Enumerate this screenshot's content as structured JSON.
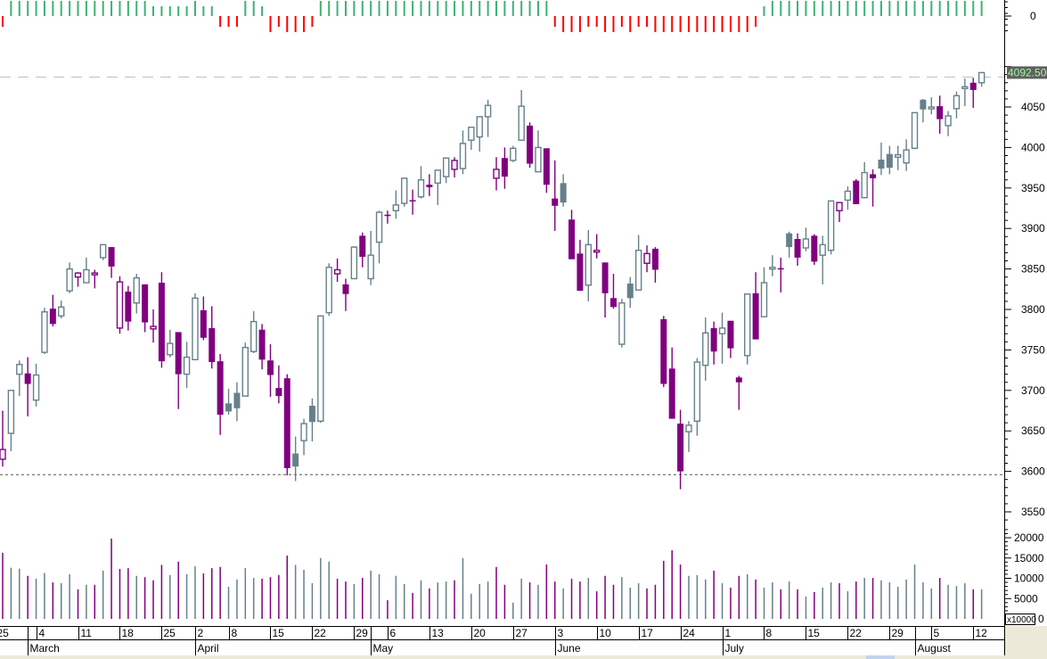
{
  "chart_data": {
    "type": "candlestick",
    "title": "",
    "colors": {
      "up": "#66808a",
      "down": "#800080",
      "indicator_up": "#3cb371",
      "indicator_down": "#ff0000",
      "last_price_bg": "#5f5f5f",
      "last_price_text": "#9dff9d"
    },
    "price_axis": {
      "range": [
        3540,
        4100
      ],
      "ticks": [
        "4050",
        "4000",
        "3950",
        "3900",
        "3850",
        "3800",
        "3750",
        "3700",
        "3650",
        "3600",
        "3550"
      ]
    },
    "last_price": {
      "value": 4092.5,
      "label": "4092.500"
    },
    "support_line": {
      "value": 3596
    },
    "indicator_axis": {
      "label": "0"
    },
    "volume_axis": {
      "ticks": [
        "20000",
        "15000",
        "10000",
        "5000",
        "0"
      ],
      "multiplier": "x10000",
      "max": 20000
    },
    "candles_ohlc": [
      [
        3615,
        3675,
        3606,
        3627
      ],
      [
        3647,
        3700,
        3625,
        3700
      ],
      [
        3720,
        3737,
        3693,
        3732
      ],
      [
        3721,
        3741,
        3668,
        3708
      ],
      [
        3688,
        3733,
        3680,
        3719
      ],
      [
        3747,
        3802,
        3745,
        3797
      ],
      [
        3801,
        3818,
        3779,
        3782
      ],
      [
        3792,
        3811,
        3789,
        3803
      ],
      [
        3823,
        3858,
        3820,
        3850
      ],
      [
        3840,
        3846,
        3828,
        3845
      ],
      [
        3833,
        3864,
        3833,
        3849
      ],
      [
        3843,
        3849,
        3826,
        3845
      ],
      [
        3864,
        3880,
        3861,
        3880
      ],
      [
        3877,
        3877,
        3839,
        3853
      ],
      [
        3777,
        3841,
        3770,
        3834
      ],
      [
        3822,
        3829,
        3774,
        3785
      ],
      [
        3808,
        3844,
        3795,
        3839
      ],
      [
        3831,
        3831,
        3772,
        3784
      ],
      [
        3776,
        3800,
        3759,
        3779
      ],
      [
        3833,
        3846,
        3728,
        3736
      ],
      [
        3744,
        3775,
        3741,
        3758
      ],
      [
        3772,
        3772,
        3677,
        3720
      ],
      [
        3720,
        3760,
        3703,
        3741
      ],
      [
        3738,
        3820,
        3738,
        3814
      ],
      [
        3799,
        3816,
        3762,
        3765
      ],
      [
        3777,
        3804,
        3727,
        3735
      ],
      [
        3736,
        3745,
        3645,
        3670
      ],
      [
        3684,
        3702,
        3670,
        3674
      ],
      [
        3697,
        3710,
        3662,
        3678
      ],
      [
        3693,
        3759,
        3693,
        3753
      ],
      [
        3748,
        3798,
        3746,
        3785
      ],
      [
        3775,
        3782,
        3726,
        3738
      ],
      [
        3737,
        3757,
        3692,
        3719
      ],
      [
        3703,
        3731,
        3684,
        3693
      ],
      [
        3715,
        3720,
        3595,
        3604
      ],
      [
        3622,
        3643,
        3588,
        3606
      ],
      [
        3638,
        3665,
        3620,
        3659
      ],
      [
        3681,
        3690,
        3637,
        3661
      ],
      [
        3662,
        3792,
        3660,
        3792
      ],
      [
        3796,
        3857,
        3792,
        3852
      ],
      [
        3844,
        3863,
        3834,
        3849
      ],
      [
        3831,
        3838,
        3798,
        3819
      ],
      [
        3838,
        3878,
        3838,
        3877
      ],
      [
        3891,
        3895,
        3852,
        3865
      ],
      [
        3838,
        3897,
        3830,
        3867
      ],
      [
        3883,
        3922,
        3857,
        3920
      ],
      [
        3917,
        3922,
        3906,
        3916
      ],
      [
        3922,
        3947,
        3912,
        3929
      ],
      [
        3931,
        3963,
        3927,
        3962
      ],
      [
        3935,
        3948,
        3917,
        3934
      ],
      [
        3939,
        3977,
        3937,
        3960
      ],
      [
        3954,
        3967,
        3940,
        3951
      ],
      [
        3956,
        3972,
        3929,
        3972
      ],
      [
        3964,
        3987,
        3956,
        3987
      ],
      [
        3973,
        3988,
        3963,
        3984
      ],
      [
        3974,
        4021,
        3967,
        4005
      ],
      [
        4009,
        4025,
        3997,
        4025
      ],
      [
        4013,
        4038,
        3995,
        4038
      ],
      [
        4038,
        4059,
        4013,
        4052
      ],
      [
        3962,
        3988,
        3947,
        3973
      ],
      [
        3987,
        4000,
        3949,
        3964
      ],
      [
        3984,
        4002,
        3982,
        3999
      ],
      [
        4009,
        4071,
        4009,
        4051
      ],
      [
        4027,
        4031,
        3975,
        3980
      ],
      [
        3970,
        4021,
        3970,
        4000
      ],
      [
        3999,
        3999,
        3944,
        3954
      ],
      [
        3937,
        3984,
        3897,
        3928
      ],
      [
        3956,
        3967,
        3927,
        3932
      ],
      [
        3911,
        3923,
        3862,
        3862
      ],
      [
        3869,
        3886,
        3823,
        3823
      ],
      [
        3830,
        3898,
        3810,
        3880
      ],
      [
        3873,
        3893,
        3863,
        3873
      ],
      [
        3858,
        3858,
        3790,
        3820
      ],
      [
        3814,
        3844,
        3801,
        3803
      ],
      [
        3757,
        3813,
        3753,
        3808
      ],
      [
        3832,
        3840,
        3802,
        3814
      ],
      [
        3824,
        3892,
        3824,
        3873
      ],
      [
        3857,
        3879,
        3846,
        3869
      ],
      [
        3875,
        3877,
        3833,
        3849
      ],
      [
        3788,
        3792,
        3704,
        3708
      ],
      [
        3727,
        3753,
        3665,
        3665
      ],
      [
        3659,
        3676,
        3578,
        3600
      ],
      [
        3649,
        3662,
        3624,
        3657
      ],
      [
        3662,
        3740,
        3644,
        3735
      ],
      [
        3731,
        3790,
        3712,
        3771
      ],
      [
        3777,
        3785,
        3732,
        3748
      ],
      [
        3770,
        3796,
        3733,
        3777
      ],
      [
        3786,
        3786,
        3740,
        3752
      ],
      [
        3716,
        3718,
        3676,
        3710
      ],
      [
        3743,
        3819,
        3732,
        3819
      ],
      [
        3820,
        3846,
        3763,
        3763
      ],
      [
        3791,
        3852,
        3791,
        3833
      ],
      [
        3850,
        3867,
        3841,
        3852
      ],
      [
        3851,
        3864,
        3821,
        3850
      ],
      [
        3894,
        3896,
        3864,
        3877
      ],
      [
        3887,
        3894,
        3854,
        3864
      ],
      [
        3876,
        3901,
        3872,
        3887
      ],
      [
        3891,
        3893,
        3855,
        3859
      ],
      [
        3867,
        3891,
        3831,
        3880
      ],
      [
        3873,
        3934,
        3868,
        3934
      ],
      [
        3922,
        3932,
        3908,
        3932
      ],
      [
        3935,
        3952,
        3923,
        3946
      ],
      [
        3959,
        3961,
        3930,
        3930
      ],
      [
        3938,
        3982,
        3938,
        3969
      ],
      [
        3967,
        3973,
        3927,
        3962
      ],
      [
        3985,
        4006,
        3966,
        3974
      ],
      [
        3992,
        4002,
        3967,
        3975
      ],
      [
        3988,
        4002,
        3972,
        3991
      ],
      [
        3981,
        4010,
        3971,
        3997
      ],
      [
        3999,
        4043,
        3998,
        4043
      ],
      [
        4059,
        4060,
        4031,
        4047
      ],
      [
        4050,
        4062,
        4041,
        4050
      ],
      [
        4051,
        4064,
        4017,
        4035
      ],
      [
        4027,
        4045,
        4014,
        4039
      ],
      [
        4048,
        4069,
        4036,
        4064
      ],
      [
        4073,
        4085,
        4051,
        4075
      ],
      [
        4080,
        4086,
        4049,
        4071
      ],
      [
        4080,
        4092.5,
        4075,
        4092.5
      ]
    ],
    "volume": [
      16300,
      12600,
      12400,
      10600,
      9900,
      11300,
      9000,
      8800,
      11000,
      7300,
      8400,
      8400,
      11900,
      19800,
      12300,
      12500,
      10600,
      10300,
      9500,
      13300,
      10800,
      14100,
      11000,
      13000,
      11200,
      12500,
      12800,
      7900,
      9700,
      12500,
      10100,
      9900,
      10300,
      10800,
      15600,
      13300,
      12100,
      8800,
      15000,
      14100,
      9900,
      9200,
      8600,
      10100,
      11900,
      11000,
      4600,
      10600,
      8600,
      6400,
      9500,
      7500,
      9000,
      9200,
      9500,
      15000,
      6200,
      8600,
      9200,
      12800,
      8400,
      4000,
      9900,
      9000,
      8400,
      13400,
      9200,
      7500,
      9900,
      9200,
      10100,
      6800,
      10600,
      8400,
      10300,
      7700,
      8800,
      7500,
      8400,
      14300,
      16900,
      13400,
      10600,
      10800,
      9700,
      11900,
      8800,
      7700,
      10600,
      11000,
      9700,
      7700,
      9000,
      7300,
      9200,
      7300,
      5500,
      6600,
      7700,
      9000,
      8800,
      6800,
      9200,
      10100,
      10100,
      9500,
      9000,
      7900,
      9700,
      13400,
      9000,
      7500,
      10100,
      8400,
      8100,
      8800,
      7300,
      7300
    ],
    "indicator": [
      -2,
      3,
      3,
      3,
      3,
      3,
      3,
      3,
      3,
      3,
      3,
      3,
      3,
      3,
      3,
      3,
      3,
      3,
      2,
      2,
      2,
      2,
      2,
      3,
      2,
      2,
      -2,
      -2,
      -2,
      3,
      3,
      2,
      -3,
      -2,
      -3,
      -3,
      -3,
      -2,
      3,
      3,
      3,
      3,
      3,
      3,
      3,
      3,
      3,
      3,
      3,
      3,
      3,
      3,
      3,
      3,
      3,
      3,
      3,
      3,
      3,
      3,
      3,
      3,
      3,
      3,
      3,
      3,
      -2,
      -3,
      -3,
      -3,
      -2,
      -2,
      -3,
      -3,
      -2,
      -3,
      -2,
      -2,
      -3,
      -3,
      -3,
      -3,
      -3,
      -3,
      -3,
      -3,
      -3,
      -3,
      -3,
      -3,
      -2,
      2,
      3,
      3,
      3,
      3,
      3,
      3,
      3,
      3,
      3,
      3,
      3,
      3,
      3,
      3,
      3,
      3,
      3,
      3,
      3,
      3,
      3,
      3,
      3,
      3,
      3,
      3
    ],
    "x_axis": {
      "days": [
        {
          "label": "25",
          "candle": 0
        },
        {
          "label": "4",
          "candle": 5
        },
        {
          "label": "11",
          "candle": 10
        },
        {
          "label": "18",
          "candle": 15
        },
        {
          "label": "25",
          "candle": 20
        },
        {
          "label": "2",
          "candle": 24
        },
        {
          "label": "8",
          "candle": 28
        },
        {
          "label": "15",
          "candle": 33
        },
        {
          "label": "22",
          "candle": 38
        },
        {
          "label": "29",
          "candle": 43
        },
        {
          "label": "6",
          "candle": 47
        },
        {
          "label": "13",
          "candle": 52
        },
        {
          "label": "20",
          "candle": 57
        },
        {
          "label": "27",
          "candle": 62
        },
        {
          "label": "3",
          "candle": 67
        },
        {
          "label": "10",
          "candle": 72
        },
        {
          "label": "17",
          "candle": 77
        },
        {
          "label": "24",
          "candle": 82
        },
        {
          "label": "1",
          "candle": 87
        },
        {
          "label": "8",
          "candle": 92
        },
        {
          "label": "15",
          "candle": 97
        },
        {
          "label": "22",
          "candle": 102
        },
        {
          "label": "29",
          "candle": 107
        },
        {
          "label": "5",
          "candle": 112
        },
        {
          "label": "12",
          "candle": 117
        }
      ],
      "months": [
        {
          "label": "March",
          "candle": 4
        },
        {
          "label": "April",
          "candle": 24
        },
        {
          "label": "May",
          "candle": 45
        },
        {
          "label": "June",
          "candle": 67
        },
        {
          "label": "July",
          "candle": 87
        },
        {
          "label": "August",
          "candle": 110
        }
      ]
    }
  }
}
